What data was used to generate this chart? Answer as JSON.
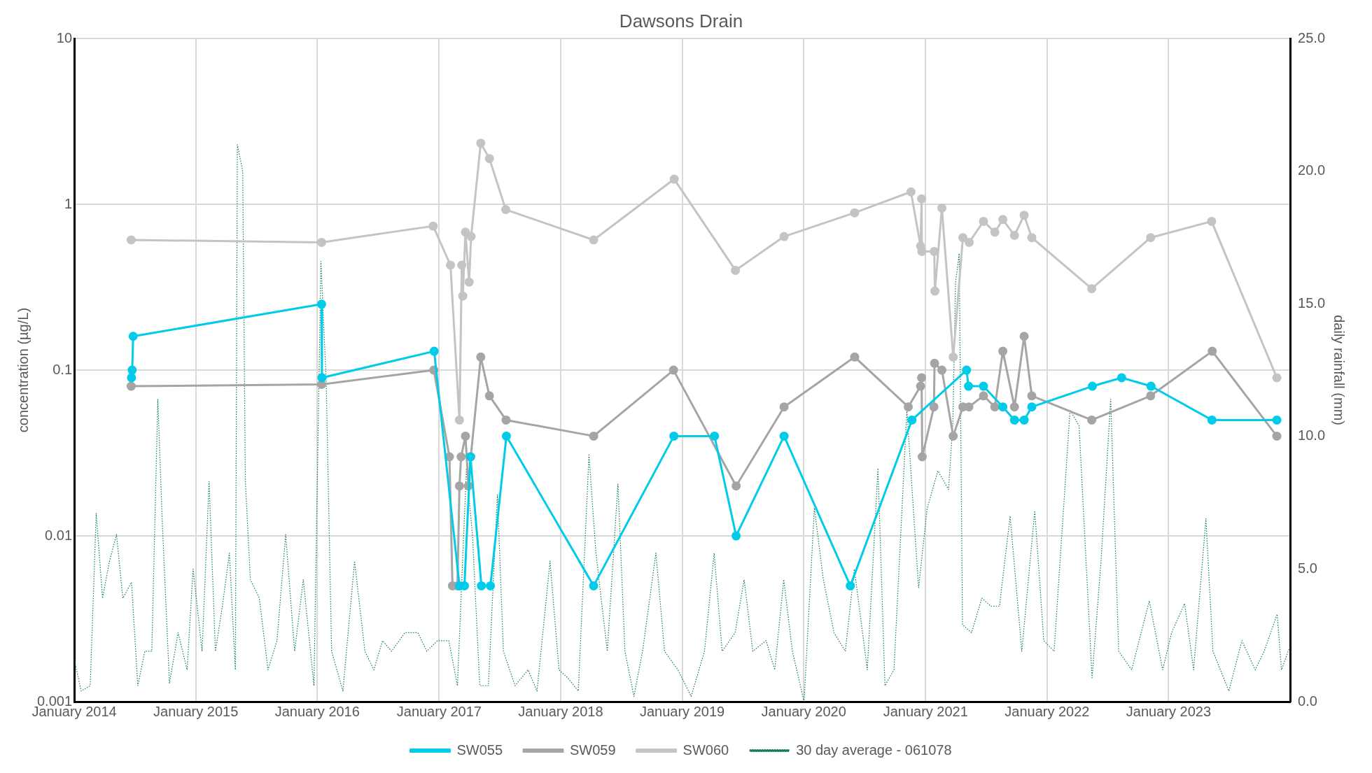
{
  "chart_data": {
    "type": "line",
    "title": "Dawsons Drain",
    "ylabel": "concentration (µg/L)",
    "y2label": "daily rainfall (mm)",
    "log": "y",
    "grid": true,
    "legend": "bottom",
    "marker": "circle",
    "line_style": "solid",
    "xlim": [
      "2014-01-01",
      "2024-01-01"
    ],
    "xticks": [
      {
        "value": "2014-01-01",
        "label": "January 2014"
      },
      {
        "value": "2015-01-01",
        "label": "January 2015"
      },
      {
        "value": "2016-01-01",
        "label": "January 2016"
      },
      {
        "value": "2017-01-01",
        "label": "January 2017"
      },
      {
        "value": "2018-01-01",
        "label": "January 2018"
      },
      {
        "value": "2019-01-01",
        "label": "January 2019"
      },
      {
        "value": "2020-01-01",
        "label": "January 2020"
      },
      {
        "value": "2021-01-01",
        "label": "January 2021"
      },
      {
        "value": "2022-01-01",
        "label": "January 2022"
      },
      {
        "value": "2023-01-01",
        "label": "January 2023"
      }
    ],
    "ylim": [
      0.001,
      10
    ],
    "yticks": [
      0.001,
      0.01,
      0.1,
      1,
      10
    ],
    "y2lim": [
      0,
      25
    ],
    "y2ticks": [
      {
        "value": 0,
        "label": "0.0"
      },
      {
        "value": 5,
        "label": "5.0"
      },
      {
        "value": 10,
        "label": "10.0"
      },
      {
        "value": 15,
        "label": "15.0"
      },
      {
        "value": 20,
        "label": "20.0"
      },
      {
        "value": 25,
        "label": "25.0"
      }
    ],
    "series": [
      {
        "name": "SW055",
        "color": "#00ccea",
        "x": [
          "2014-06-22",
          "2014-06-24",
          "2014-06-27",
          "2016-01-14",
          "2016-01-15",
          "2016-12-17",
          "2017-03-03",
          "2017-03-18",
          "2017-04-05",
          "2017-05-08",
          "2017-06-04",
          "2017-07-22",
          "2018-04-10",
          "2018-12-07",
          "2019-04-08",
          "2019-06-12",
          "2019-11-03",
          "2020-05-20",
          "2020-11-21",
          "2021-05-04",
          "2021-05-10",
          "2021-06-24",
          "2021-08-21",
          "2021-09-25",
          "2021-10-24",
          "2021-11-16",
          "2022-05-17",
          "2022-08-13",
          "2022-11-09",
          "2023-05-11",
          "2023-11-22"
        ],
        "values": [
          0.09,
          0.1,
          0.16,
          0.25,
          0.09,
          0.13,
          0.005,
          0.005,
          0.03,
          0.005,
          0.005,
          0.04,
          0.005,
          0.04,
          0.04,
          0.01,
          0.04,
          0.005,
          0.05,
          0.1,
          0.08,
          0.08,
          0.06,
          0.05,
          0.05,
          0.06,
          0.08,
          0.09,
          0.08,
          0.05,
          0.05
        ]
      },
      {
        "name": "SW059",
        "color": "#a5a5a5",
        "x": [
          "2014-06-21",
          "2016-01-14",
          "2016-12-16",
          "2017-02-01",
          "2017-02-10",
          "2017-02-25",
          "2017-03-03",
          "2017-03-08",
          "2017-03-21",
          "2017-03-30",
          "2017-04-06",
          "2017-05-06",
          "2017-06-01",
          "2017-07-21",
          "2018-04-10",
          "2018-12-06",
          "2019-06-12",
          "2019-11-03",
          "2020-06-02",
          "2020-11-10",
          "2020-12-17",
          "2020-12-20",
          "2020-12-22",
          "2021-01-26",
          "2021-01-28",
          "2021-02-19",
          "2021-03-25",
          "2021-04-23",
          "2021-05-11",
          "2021-06-24",
          "2021-07-28",
          "2021-08-21",
          "2021-09-25",
          "2021-10-24",
          "2021-11-16",
          "2022-05-15",
          "2022-11-08",
          "2023-05-12",
          "2023-11-22"
        ],
        "values": [
          0.08,
          0.082,
          0.1,
          0.03,
          0.005,
          0.005,
          0.02,
          0.03,
          0.04,
          0.02,
          0.03,
          0.12,
          0.07,
          0.05,
          0.04,
          0.1,
          0.02,
          0.06,
          0.12,
          0.06,
          0.08,
          0.09,
          0.03,
          0.06,
          0.11,
          0.1,
          0.04,
          0.06,
          0.06,
          0.07,
          0.06,
          0.13,
          0.06,
          0.16,
          0.07,
          0.05,
          0.07,
          0.13,
          0.04
        ]
      },
      {
        "name": "SW060",
        "color": "#c4c4c4",
        "x": [
          "2014-06-21",
          "2016-01-14",
          "2016-12-14",
          "2017-02-04",
          "2017-03-03",
          "2017-03-10",
          "2017-03-13",
          "2017-03-21",
          "2017-04-01",
          "2017-04-07",
          "2017-05-06",
          "2017-06-01",
          "2017-07-20",
          "2018-04-10",
          "2018-12-08",
          "2019-06-10",
          "2019-11-03",
          "2020-06-02",
          "2020-11-18",
          "2020-12-17",
          "2020-12-20",
          "2020-12-21",
          "2021-01-27",
          "2021-01-29",
          "2021-02-19",
          "2021-03-25",
          "2021-04-23",
          "2021-05-12",
          "2021-06-24",
          "2021-07-28",
          "2021-08-21",
          "2021-09-25",
          "2021-10-24",
          "2021-11-16",
          "2022-05-15",
          "2022-11-08",
          "2023-05-10",
          "2023-11-22"
        ],
        "values": [
          0.61,
          0.59,
          0.74,
          0.43,
          0.05,
          0.43,
          0.28,
          0.68,
          0.34,
          0.64,
          2.34,
          1.89,
          0.93,
          0.61,
          1.42,
          0.4,
          0.64,
          0.89,
          1.19,
          0.56,
          1.08,
          0.52,
          0.52,
          0.3,
          0.95,
          0.12,
          0.63,
          0.59,
          0.79,
          0.68,
          0.81,
          0.65,
          0.86,
          0.63,
          0.31,
          0.63,
          0.79,
          0.09
        ]
      },
      {
        "name": "30 day average - 061078",
        "color": "#0a7d5a",
        "axis": "y2",
        "marker": "none",
        "line_style": "dotted",
        "x": [
          "2014-01-01",
          "2014-01-22",
          "2014-02-18",
          "2014-03-08",
          "2014-03-27",
          "2014-04-17",
          "2014-05-08",
          "2014-05-27",
          "2014-06-22",
          "2014-07-11",
          "2014-08-01",
          "2014-08-22",
          "2014-09-09",
          "2014-09-23",
          "2014-10-14",
          "2014-11-09",
          "2014-12-06",
          "2014-12-24",
          "2015-01-20",
          "2015-02-10",
          "2015-03-01",
          "2015-03-22",
          "2015-04-12",
          "2015-04-30",
          "2015-05-06",
          "2015-05-22",
          "2015-05-30",
          "2015-06-14",
          "2015-07-11",
          "2015-08-06",
          "2015-09-02",
          "2015-09-28",
          "2015-10-25",
          "2015-11-20",
          "2015-12-22",
          "2016-01-12",
          "2016-01-28",
          "2016-02-13",
          "2016-03-18",
          "2016-04-22",
          "2016-05-23",
          "2016-06-19",
          "2016-07-15",
          "2016-08-11",
          "2016-09-20",
          "2016-10-29",
          "2016-11-25",
          "2016-12-27",
          "2017-01-30",
          "2017-02-25",
          "2017-03-24",
          "2017-04-11",
          "2017-05-03",
          "2017-05-29",
          "2017-06-25",
          "2017-07-13",
          "2017-08-17",
          "2017-09-25",
          "2017-10-22",
          "2017-11-30",
          "2017-12-27",
          "2018-01-22",
          "2018-02-23",
          "2018-03-27",
          "2018-04-17",
          "2018-05-21",
          "2018-06-22",
          "2018-07-13",
          "2018-08-09",
          "2018-09-04",
          "2018-10-14",
          "2018-11-09",
          "2018-12-19",
          "2019-01-28",
          "2019-03-09",
          "2019-04-07",
          "2019-05-01",
          "2019-06-09",
          "2019-07-06",
          "2019-08-01",
          "2019-09-10",
          "2019-10-06",
          "2019-11-02",
          "2019-11-28",
          "2020-01-02",
          "2020-02-02",
          "2020-02-29",
          "2020-04-01",
          "2020-05-05",
          "2020-06-01",
          "2020-07-10",
          "2020-08-11",
          "2020-09-01",
          "2020-09-28",
          "2020-11-06",
          "2020-11-25",
          "2020-12-11",
          "2021-01-06",
          "2021-02-07",
          "2021-03-11",
          "2021-03-24",
          "2021-04-01",
          "2021-04-12",
          "2021-04-22",
          "2021-05-19",
          "2021-06-19",
          "2021-07-16",
          "2021-08-11",
          "2021-09-12",
          "2021-10-17",
          "2021-11-25",
          "2021-12-22",
          "2022-01-22",
          "2022-03-11",
          "2022-04-07",
          "2022-05-16",
          "2022-06-12",
          "2022-07-11",
          "2022-08-04",
          "2022-09-12",
          "2022-11-04",
          "2022-12-14",
          "2023-01-10",
          "2023-02-18",
          "2023-03-17",
          "2023-04-23",
          "2023-05-14",
          "2023-07-01",
          "2023-08-09",
          "2023-09-18",
          "2023-10-15",
          "2023-11-23",
          "2023-12-06",
          "2024-01-01"
        ],
        "values": [
          1.6,
          0.4,
          0.6,
          7.1,
          3.9,
          5.3,
          6.3,
          3.9,
          4.5,
          0.6,
          1.9,
          1.9,
          11.4,
          6.6,
          0.7,
          2.6,
          1.2,
          5.0,
          1.9,
          8.3,
          1.9,
          3.6,
          5.6,
          1.2,
          21.0,
          20.0,
          8.3,
          4.6,
          3.9,
          1.2,
          2.3,
          6.3,
          1.9,
          4.6,
          0.6,
          16.6,
          12.0,
          1.9,
          0.4,
          5.3,
          1.9,
          1.2,
          2.3,
          1.9,
          2.6,
          2.6,
          1.9,
          2.3,
          2.3,
          0.6,
          8.8,
          6.3,
          0.6,
          0.6,
          7.8,
          1.9,
          0.6,
          1.2,
          0.4,
          5.3,
          1.2,
          0.9,
          0.4,
          9.3,
          5.6,
          1.9,
          8.2,
          1.9,
          0.2,
          1.9,
          5.6,
          1.9,
          1.2,
          0.2,
          1.9,
          5.6,
          1.9,
          2.6,
          4.6,
          1.9,
          2.3,
          1.2,
          4.6,
          1.9,
          0.0,
          7.3,
          4.6,
          2.6,
          1.9,
          5.0,
          1.2,
          8.8,
          0.6,
          1.2,
          11.0,
          7.3,
          4.3,
          7.3,
          8.7,
          8.0,
          10.5,
          15.8,
          16.9,
          2.9,
          2.6,
          3.9,
          3.6,
          3.6,
          7.0,
          1.9,
          7.2,
          2.3,
          1.9,
          11.0,
          10.4,
          0.9,
          5.3,
          11.4,
          1.9,
          1.2,
          3.8,
          1.2,
          2.6,
          3.7,
          1.2,
          6.9,
          1.9,
          0.4,
          2.3,
          1.2,
          1.9,
          3.3,
          1.2,
          2.1
        ]
      }
    ]
  }
}
